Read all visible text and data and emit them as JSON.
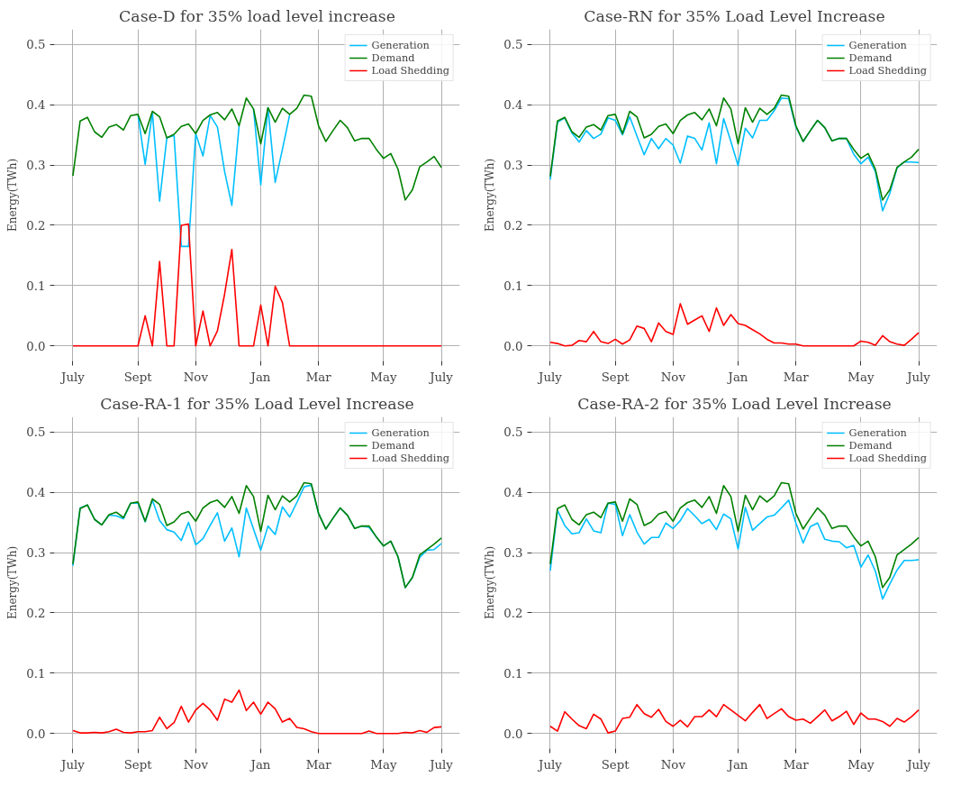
{
  "chart_data": [
    {
      "type": "line",
      "title": "Case-D for 35% load level increase",
      "ylabel": "Energy(TWh)",
      "categories": [
        "July",
        null,
        null,
        null,
        null,
        null,
        null,
        null,
        null,
        "Sept",
        null,
        null,
        null,
        null,
        null,
        null,
        null,
        "Nov",
        null,
        null,
        null,
        null,
        null,
        null,
        null,
        null,
        "Jan",
        null,
        null,
        null,
        null,
        null,
        null,
        null,
        "Mar",
        null,
        null,
        null,
        null,
        null,
        null,
        null,
        null,
        "May",
        null,
        null,
        null,
        null,
        null,
        null,
        null,
        "July"
      ],
      "ylim": [
        -0.025,
        0.525
      ],
      "yticks": [
        {
          "value": 0,
          "label": "0.0"
        },
        {
          "value": 0.1,
          "label": "0.1"
        },
        {
          "value": 0.2,
          "label": "0.2"
        },
        {
          "value": 0.3,
          "label": "0.3"
        },
        {
          "value": 0.4,
          "label": "0.4"
        },
        {
          "value": 0.5,
          "label": "0.5"
        }
      ],
      "grid": true,
      "legend": "top right",
      "series": [
        {
          "name": "Generation",
          "color": "#00bfff",
          "values": [
            null,
            null,
            null,
            null,
            null,
            null,
            null,
            null,
            null,
            0.384,
            0.301,
            0.387,
            0.24,
            0.345,
            0.349,
            0.165,
            0.165,
            0.352,
            0.315,
            0.382,
            0.363,
            0.289,
            0.233,
            0.365,
            null,
            0.393,
            0.267,
            0.395,
            0.271,
            0.326,
            0.383,
            null,
            null,
            null,
            null,
            null,
            null,
            null,
            null,
            null,
            null,
            null,
            null,
            null,
            null,
            null,
            null,
            null,
            null,
            null,
            null,
            null
          ]
        },
        {
          "name": "Demand",
          "color": "#008000",
          "values": [
            0.282,
            0.373,
            0.379,
            0.355,
            0.346,
            0.363,
            0.367,
            0.358,
            0.382,
            0.384,
            0.352,
            0.389,
            0.38,
            0.345,
            0.351,
            0.364,
            0.368,
            0.352,
            0.374,
            0.383,
            0.387,
            0.375,
            0.393,
            0.365,
            0.411,
            0.393,
            0.335,
            0.395,
            0.371,
            0.394,
            0.384,
            0.394,
            0.416,
            0.414,
            0.365,
            0.339,
            0.357,
            0.374,
            0.362,
            0.34,
            0.344,
            0.344,
            0.326,
            0.311,
            0.319,
            0.293,
            0.242,
            0.259,
            0.297,
            0.305,
            0.314,
            0.296
          ]
        },
        {
          "name": "Load Shedding",
          "color": "#ff0000",
          "values": [
            0,
            0,
            0,
            0,
            0,
            0,
            0,
            0,
            0,
            0,
            0.05,
            0,
            0.14,
            0,
            0,
            0.2,
            0.202,
            0,
            0.058,
            0,
            0.025,
            0.086,
            0.16,
            0,
            0,
            0,
            0.068,
            0,
            0.099,
            0.072,
            0,
            0,
            0,
            0,
            0,
            0,
            0,
            0,
            0,
            0,
            0,
            0,
            0,
            0,
            0,
            0,
            0,
            0,
            0,
            0,
            0,
            0
          ]
        }
      ]
    },
    {
      "type": "line",
      "title": "Case-RN for 35% Load Level Increase",
      "ylabel": "Energy(TWh)",
      "categories": [
        "July",
        null,
        null,
        null,
        null,
        null,
        null,
        null,
        null,
        "Sept",
        null,
        null,
        null,
        null,
        null,
        null,
        null,
        "Nov",
        null,
        null,
        null,
        null,
        null,
        null,
        null,
        null,
        "Jan",
        null,
        null,
        null,
        null,
        null,
        null,
        null,
        "Mar",
        null,
        null,
        null,
        null,
        null,
        null,
        null,
        null,
        "May",
        null,
        null,
        null,
        null,
        null,
        null,
        null,
        "July"
      ],
      "ylim": [
        -0.025,
        0.525
      ],
      "yticks": [
        {
          "value": 0,
          "label": "0.0"
        },
        {
          "value": 0.1,
          "label": "0.1"
        },
        {
          "value": 0.2,
          "label": "0.2"
        },
        {
          "value": 0.3,
          "label": "0.3"
        },
        {
          "value": 0.4,
          "label": "0.4"
        },
        {
          "value": 0.5,
          "label": "0.5"
        }
      ],
      "grid": true,
      "legend": "top right",
      "series": [
        {
          "name": "Generation",
          "color": "#00bfff",
          "values": [
            0.276,
            0.371,
            0.378,
            0.353,
            0.338,
            0.357,
            0.344,
            0.351,
            0.378,
            0.374,
            0.35,
            0.38,
            0.348,
            0.317,
            0.344,
            0.327,
            0.344,
            0.333,
            0.303,
            0.348,
            0.344,
            0.325,
            0.37,
            0.302,
            0.377,
            0.339,
            0.299,
            0.361,
            0.345,
            0.374,
            0.374,
            0.39,
            0.411,
            0.41,
            0.363,
            0.339,
            0.357,
            0.374,
            0.362,
            0.34,
            0.344,
            0.344,
            0.318,
            0.302,
            0.313,
            0.289,
            0.224,
            0.253,
            0.295,
            0.305,
            0.305,
            0.304
          ]
        },
        {
          "name": "Demand",
          "color": "#008000",
          "values": [
            0.281,
            0.373,
            0.379,
            0.355,
            0.346,
            0.363,
            0.367,
            0.358,
            0.382,
            0.384,
            0.352,
            0.389,
            0.38,
            0.345,
            0.351,
            0.364,
            0.368,
            0.352,
            0.374,
            0.383,
            0.387,
            0.375,
            0.393,
            0.365,
            0.411,
            0.393,
            0.335,
            0.395,
            0.371,
            0.394,
            0.384,
            0.394,
            0.416,
            0.414,
            0.365,
            0.339,
            0.357,
            0.374,
            0.362,
            0.34,
            0.344,
            0.344,
            0.326,
            0.311,
            0.319,
            0.293,
            0.242,
            0.259,
            0.296,
            0.305,
            0.313,
            0.326
          ]
        },
        {
          "name": "Load Shedding",
          "color": "#ff0000",
          "values": [
            0.006,
            0.004,
            0,
            0.001,
            0.009,
            0.007,
            0.024,
            0.007,
            0.004,
            0.011,
            0.003,
            0.01,
            0.033,
            0.029,
            0.007,
            0.038,
            0.024,
            0.019,
            0.07,
            0.036,
            0.043,
            0.05,
            0.024,
            0.063,
            0.034,
            0.052,
            0.037,
            0.034,
            0.027,
            0.02,
            0.011,
            0.005,
            0.005,
            0.003,
            0.003,
            0,
            0,
            0,
            0,
            0,
            0,
            0,
            0,
            0.008,
            0.006,
            0.001,
            0.017,
            0.007,
            0.003,
            0.001,
            0.011,
            0.022
          ]
        }
      ]
    },
    {
      "type": "line",
      "title": "Case-RA-1 for 35% Load Level Increase",
      "ylabel": "Energy(TWh)",
      "categories": [
        "July",
        null,
        null,
        null,
        null,
        null,
        null,
        null,
        null,
        "Sept",
        null,
        null,
        null,
        null,
        null,
        null,
        null,
        "Nov",
        null,
        null,
        null,
        null,
        null,
        null,
        null,
        null,
        "Jan",
        null,
        null,
        null,
        null,
        null,
        null,
        null,
        "Mar",
        null,
        null,
        null,
        null,
        null,
        null,
        null,
        null,
        "May",
        null,
        null,
        null,
        null,
        null,
        null,
        null,
        "July"
      ],
      "ylim": [
        -0.025,
        0.525
      ],
      "yticks": [
        {
          "value": 0,
          "label": "0.0"
        },
        {
          "value": 0.1,
          "label": "0.1"
        },
        {
          "value": 0.2,
          "label": "0.2"
        },
        {
          "value": 0.3,
          "label": "0.3"
        },
        {
          "value": 0.4,
          "label": "0.4"
        },
        {
          "value": 0.5,
          "label": "0.5"
        }
      ],
      "grid": true,
      "legend": "top right",
      "series": [
        {
          "name": "Generation",
          "color": "#00bfff",
          "values": [
            0.278,
            0.374,
            0.379,
            0.355,
            0.346,
            0.362,
            0.361,
            0.356,
            0.382,
            0.382,
            0.351,
            0.387,
            0.353,
            0.338,
            0.334,
            0.32,
            0.35,
            0.313,
            0.323,
            0.345,
            0.366,
            0.319,
            0.341,
            0.293,
            0.374,
            0.339,
            0.304,
            0.344,
            0.33,
            0.376,
            0.359,
            0.383,
            0.409,
            0.412,
            0.365,
            0.339,
            0.357,
            0.374,
            0.362,
            0.34,
            0.344,
            0.342,
            0.326,
            0.311,
            0.319,
            0.293,
            0.242,
            0.259,
            0.292,
            0.304,
            0.305,
            0.315
          ]
        },
        {
          "name": "Demand",
          "color": "#008000",
          "values": [
            0.281,
            0.373,
            0.379,
            0.355,
            0.346,
            0.363,
            0.367,
            0.358,
            0.382,
            0.384,
            0.352,
            0.389,
            0.38,
            0.345,
            0.351,
            0.364,
            0.368,
            0.352,
            0.374,
            0.383,
            0.387,
            0.375,
            0.393,
            0.365,
            0.411,
            0.393,
            0.335,
            0.395,
            0.371,
            0.394,
            0.384,
            0.394,
            0.416,
            0.414,
            0.365,
            0.339,
            0.357,
            0.374,
            0.362,
            0.34,
            0.344,
            0.344,
            0.326,
            0.311,
            0.319,
            0.293,
            0.242,
            0.259,
            0.296,
            0.305,
            0.314,
            0.324
          ]
        },
        {
          "name": "Load Shedding",
          "color": "#ff0000",
          "values": [
            0.005,
            0.001,
            0.001,
            0.002,
            0.001,
            0.003,
            0.007,
            0.002,
            0.001,
            0.003,
            0.003,
            0.005,
            0.027,
            0.008,
            0.018,
            0.045,
            0.019,
            0.039,
            0.05,
            0.039,
            0.022,
            0.057,
            0.052,
            0.072,
            0.038,
            0.052,
            0.032,
            0.052,
            0.041,
            0.019,
            0.025,
            0.01,
            0.008,
            0.003,
            0,
            0,
            0,
            0,
            0,
            0,
            0,
            0.004,
            0,
            0,
            0,
            0,
            0.002,
            0.001,
            0.005,
            0.002,
            0.01,
            0.011
          ]
        }
      ]
    },
    {
      "type": "line",
      "title": "Case-RA-2 for 35% Load Level Increase",
      "ylabel": "Energy(TWh)",
      "categories": [
        "July",
        null,
        null,
        null,
        null,
        null,
        null,
        null,
        null,
        "Sept",
        null,
        null,
        null,
        null,
        null,
        null,
        null,
        "Nov",
        null,
        null,
        null,
        null,
        null,
        null,
        null,
        null,
        "Jan",
        null,
        null,
        null,
        null,
        null,
        null,
        null,
        "Mar",
        null,
        null,
        null,
        null,
        null,
        null,
        null,
        null,
        "May",
        null,
        null,
        null,
        null,
        null,
        null,
        null,
        "July"
      ],
      "ylim": [
        -0.025,
        0.525
      ],
      "yticks": [
        {
          "value": 0,
          "label": "0.0"
        },
        {
          "value": 0.1,
          "label": "0.1"
        },
        {
          "value": 0.2,
          "label": "0.2"
        },
        {
          "value": 0.3,
          "label": "0.3"
        },
        {
          "value": 0.4,
          "label": "0.4"
        },
        {
          "value": 0.5,
          "label": "0.5"
        }
      ],
      "grid": true,
      "legend": "top right",
      "series": [
        {
          "name": "Generation",
          "color": "#00bfff",
          "values": [
            0.27,
            0.37,
            0.345,
            0.331,
            0.333,
            0.356,
            0.336,
            0.333,
            0.382,
            0.38,
            0.328,
            0.363,
            0.334,
            0.314,
            0.325,
            0.325,
            0.349,
            0.34,
            0.353,
            0.373,
            0.361,
            0.348,
            0.355,
            0.338,
            0.364,
            0.356,
            0.306,
            0.375,
            0.337,
            0.348,
            0.359,
            0.362,
            0.374,
            0.387,
            0.349,
            0.316,
            0.343,
            0.349,
            0.322,
            0.319,
            0.318,
            0.308,
            0.312,
            0.276,
            0.296,
            0.269,
            0.223,
            0.248,
            0.271,
            0.287,
            0.287,
            0.288
          ]
        },
        {
          "name": "Demand",
          "color": "#008000",
          "values": [
            0.281,
            0.373,
            0.379,
            0.355,
            0.346,
            0.363,
            0.367,
            0.358,
            0.382,
            0.384,
            0.352,
            0.389,
            0.38,
            0.345,
            0.351,
            0.364,
            0.368,
            0.352,
            0.374,
            0.383,
            0.387,
            0.375,
            0.393,
            0.365,
            0.411,
            0.393,
            0.335,
            0.395,
            0.371,
            0.394,
            0.384,
            0.394,
            0.416,
            0.414,
            0.365,
            0.339,
            0.357,
            0.374,
            0.362,
            0.34,
            0.344,
            0.344,
            0.326,
            0.311,
            0.319,
            0.293,
            0.242,
            0.259,
            0.296,
            0.305,
            0.314,
            0.325
          ]
        },
        {
          "name": "Load Shedding",
          "color": "#ff0000",
          "values": [
            0.012,
            0.004,
            0.036,
            0.024,
            0.013,
            0.008,
            0.032,
            0.024,
            0.001,
            0.004,
            0.025,
            0.027,
            0.048,
            0.033,
            0.027,
            0.04,
            0.02,
            0.012,
            0.022,
            0.011,
            0.028,
            0.028,
            0.039,
            0.028,
            0.048,
            0.039,
            0.03,
            0.021,
            0.035,
            0.048,
            0.025,
            0.033,
            0.041,
            0.028,
            0.022,
            0.024,
            0.017,
            0.028,
            0.039,
            0.021,
            0.028,
            0.037,
            0.015,
            0.034,
            0.024,
            0.024,
            0.02,
            0.012,
            0.025,
            0.019,
            0.028,
            0.039
          ]
        }
      ]
    }
  ]
}
